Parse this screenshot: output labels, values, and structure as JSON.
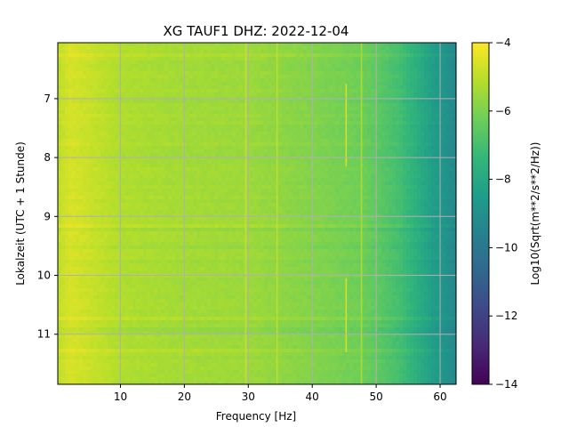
{
  "chart_data": {
    "type": "heatmap",
    "title": "XG TAUF1  DHZ: 2022-12-04",
    "xlabel": "Frequency [Hz]",
    "ylabel": "Lokalzeit (UTC + 1 Stunde)",
    "colorbar_label": "Log10(Sqrt(m**2/s**2/Hz))",
    "colormap": "viridis",
    "grid": true,
    "xlim": [
      0.2,
      62.5
    ],
    "ylim": [
      11.85,
      6.05
    ],
    "clim": [
      -14,
      -4
    ],
    "x_ticks": [
      10,
      20,
      30,
      40,
      50,
      60
    ],
    "y_ticks": [
      7,
      8,
      9,
      10,
      11
    ],
    "colorbar_ticks": [
      -4,
      -6,
      -8,
      -10,
      -12,
      -14
    ],
    "x_profile": [
      [
        0.2,
        -5.0
      ],
      [
        2,
        -4.6
      ],
      [
        5,
        -4.8
      ],
      [
        10,
        -5.2
      ],
      [
        20,
        -5.4
      ],
      [
        30,
        -5.5
      ],
      [
        40,
        -5.9
      ],
      [
        47,
        -6.2
      ],
      [
        50,
        -6.5
      ],
      [
        54,
        -7.1
      ],
      [
        57,
        -7.9
      ],
      [
        60,
        -8.7
      ],
      [
        62.5,
        -9.3
      ]
    ],
    "features": [
      {
        "freq": 45.3,
        "t_start": 6.75,
        "t_end": 8.15,
        "value": -4.4
      },
      {
        "freq": 45.3,
        "t_start": 10.05,
        "t_end": 11.3,
        "value": -4.4
      },
      {
        "freq": 29.6,
        "t_start": 6.05,
        "t_end": 11.85,
        "value": -4.8
      },
      {
        "freq": 34.5,
        "t_start": 6.05,
        "t_end": 11.85,
        "value": -4.9
      },
      {
        "freq": 47.7,
        "t_start": 6.05,
        "t_end": 11.85,
        "value": -5.1
      }
    ]
  },
  "colors": {
    "viridis": [
      "#440154",
      "#482878",
      "#3e4989",
      "#31688e",
      "#26828e",
      "#1f9e89",
      "#35b779",
      "#6ece58",
      "#b5de2b",
      "#fde725"
    ],
    "grid": "#b0b0b0"
  }
}
